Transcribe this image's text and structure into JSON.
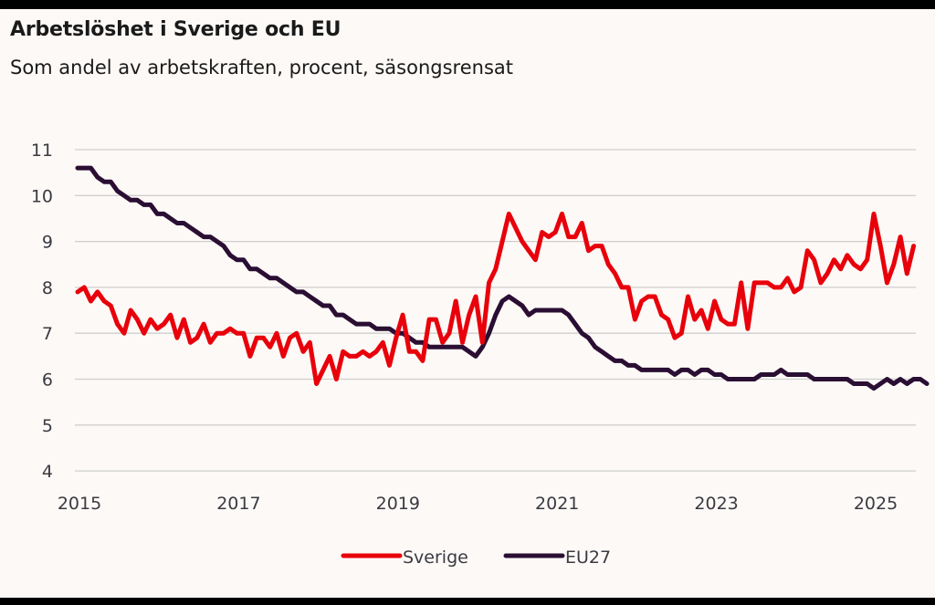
{
  "header": {
    "title": "Arbetslöshet i Sverige och EU",
    "subtitle": "Som andel av arbetskraften, procent, säsongsrensat"
  },
  "colors": {
    "background": "#fdf9f6",
    "gridline": "#cfcfcf",
    "sverige": "#e8000b",
    "eu27": "#2a0e33",
    "text": "#3a3a42"
  },
  "chart_data": {
    "type": "line",
    "title": "Arbetslöshet i Sverige och EU",
    "subtitle": "Som andel av arbetskraften, procent, säsongsrensat",
    "xlabel": "",
    "ylabel": "",
    "frequency": "monthly",
    "x_start": "2015-01",
    "x_end": "2025-07",
    "xticks": [
      "2015",
      "2017",
      "2019",
      "2021",
      "2023",
      "2025"
    ],
    "yticks": [
      4,
      5,
      6,
      7,
      8,
      9,
      10,
      11
    ],
    "ylim": [
      4,
      11
    ],
    "grid": true,
    "legend_position": "bottom-center",
    "series": [
      {
        "name": "Sverige",
        "values": [
          7.9,
          8.0,
          7.7,
          7.9,
          7.7,
          7.6,
          7.2,
          7.0,
          7.5,
          7.3,
          7.0,
          7.3,
          7.1,
          7.2,
          7.4,
          6.9,
          7.3,
          6.8,
          6.9,
          7.2,
          6.8,
          7.0,
          7.0,
          7.1,
          7.0,
          7.0,
          6.5,
          6.9,
          6.9,
          6.7,
          7.0,
          6.5,
          6.9,
          7.0,
          6.6,
          6.8,
          5.9,
          6.2,
          6.5,
          6.0,
          6.6,
          6.5,
          6.5,
          6.6,
          6.5,
          6.6,
          6.8,
          6.3,
          6.9,
          7.4,
          6.6,
          6.6,
          6.4,
          7.3,
          7.3,
          6.8,
          7.0,
          7.7,
          6.8,
          7.4,
          7.8,
          6.8,
          8.1,
          8.4,
          9.0,
          9.6,
          9.3,
          9.0,
          8.8,
          8.6,
          9.2,
          9.1,
          9.2,
          9.6,
          9.1,
          9.1,
          9.4,
          8.8,
          8.9,
          8.9,
          8.5,
          8.3,
          8.0,
          8.0,
          7.3,
          7.7,
          7.8,
          7.8,
          7.4,
          7.3,
          6.9,
          7.0,
          7.8,
          7.3,
          7.5,
          7.1,
          7.7,
          7.3,
          7.2,
          7.2,
          8.1,
          7.1,
          8.1,
          8.1,
          8.1,
          8.0,
          8.0,
          8.2,
          7.9,
          8.0,
          8.8,
          8.6,
          8.1,
          8.3,
          8.6,
          8.4,
          8.7,
          8.5,
          8.4,
          8.6,
          9.6,
          8.9,
          8.1,
          8.5,
          9.1,
          8.3,
          8.9
        ]
      },
      {
        "name": "EU27",
        "values": [
          10.6,
          10.6,
          10.6,
          10.4,
          10.3,
          10.3,
          10.1,
          10.0,
          9.9,
          9.9,
          9.8,
          9.8,
          9.6,
          9.6,
          9.5,
          9.4,
          9.4,
          9.3,
          9.2,
          9.1,
          9.1,
          9.0,
          8.9,
          8.7,
          8.6,
          8.6,
          8.4,
          8.4,
          8.3,
          8.2,
          8.2,
          8.1,
          8.0,
          7.9,
          7.9,
          7.8,
          7.7,
          7.6,
          7.6,
          7.4,
          7.4,
          7.3,
          7.2,
          7.2,
          7.2,
          7.1,
          7.1,
          7.1,
          7.0,
          7.0,
          6.9,
          6.8,
          6.8,
          6.7,
          6.7,
          6.7,
          6.7,
          6.7,
          6.7,
          6.6,
          6.5,
          6.7,
          7.0,
          7.4,
          7.7,
          7.8,
          7.7,
          7.6,
          7.4,
          7.5,
          7.5,
          7.5,
          7.5,
          7.5,
          7.4,
          7.2,
          7.0,
          6.9,
          6.7,
          6.6,
          6.5,
          6.4,
          6.4,
          6.3,
          6.3,
          6.2,
          6.2,
          6.2,
          6.2,
          6.2,
          6.1,
          6.2,
          6.2,
          6.1,
          6.2,
          6.2,
          6.1,
          6.1,
          6.0,
          6.0,
          6.0,
          6.0,
          6.0,
          6.1,
          6.1,
          6.1,
          6.2,
          6.1,
          6.1,
          6.1,
          6.1,
          6.0,
          6.0,
          6.0,
          6.0,
          6.0,
          6.0,
          5.9,
          5.9,
          5.9,
          5.8,
          5.9,
          6.0,
          5.9,
          6.0,
          5.9,
          6.0,
          6.0,
          5.9
        ]
      }
    ]
  }
}
